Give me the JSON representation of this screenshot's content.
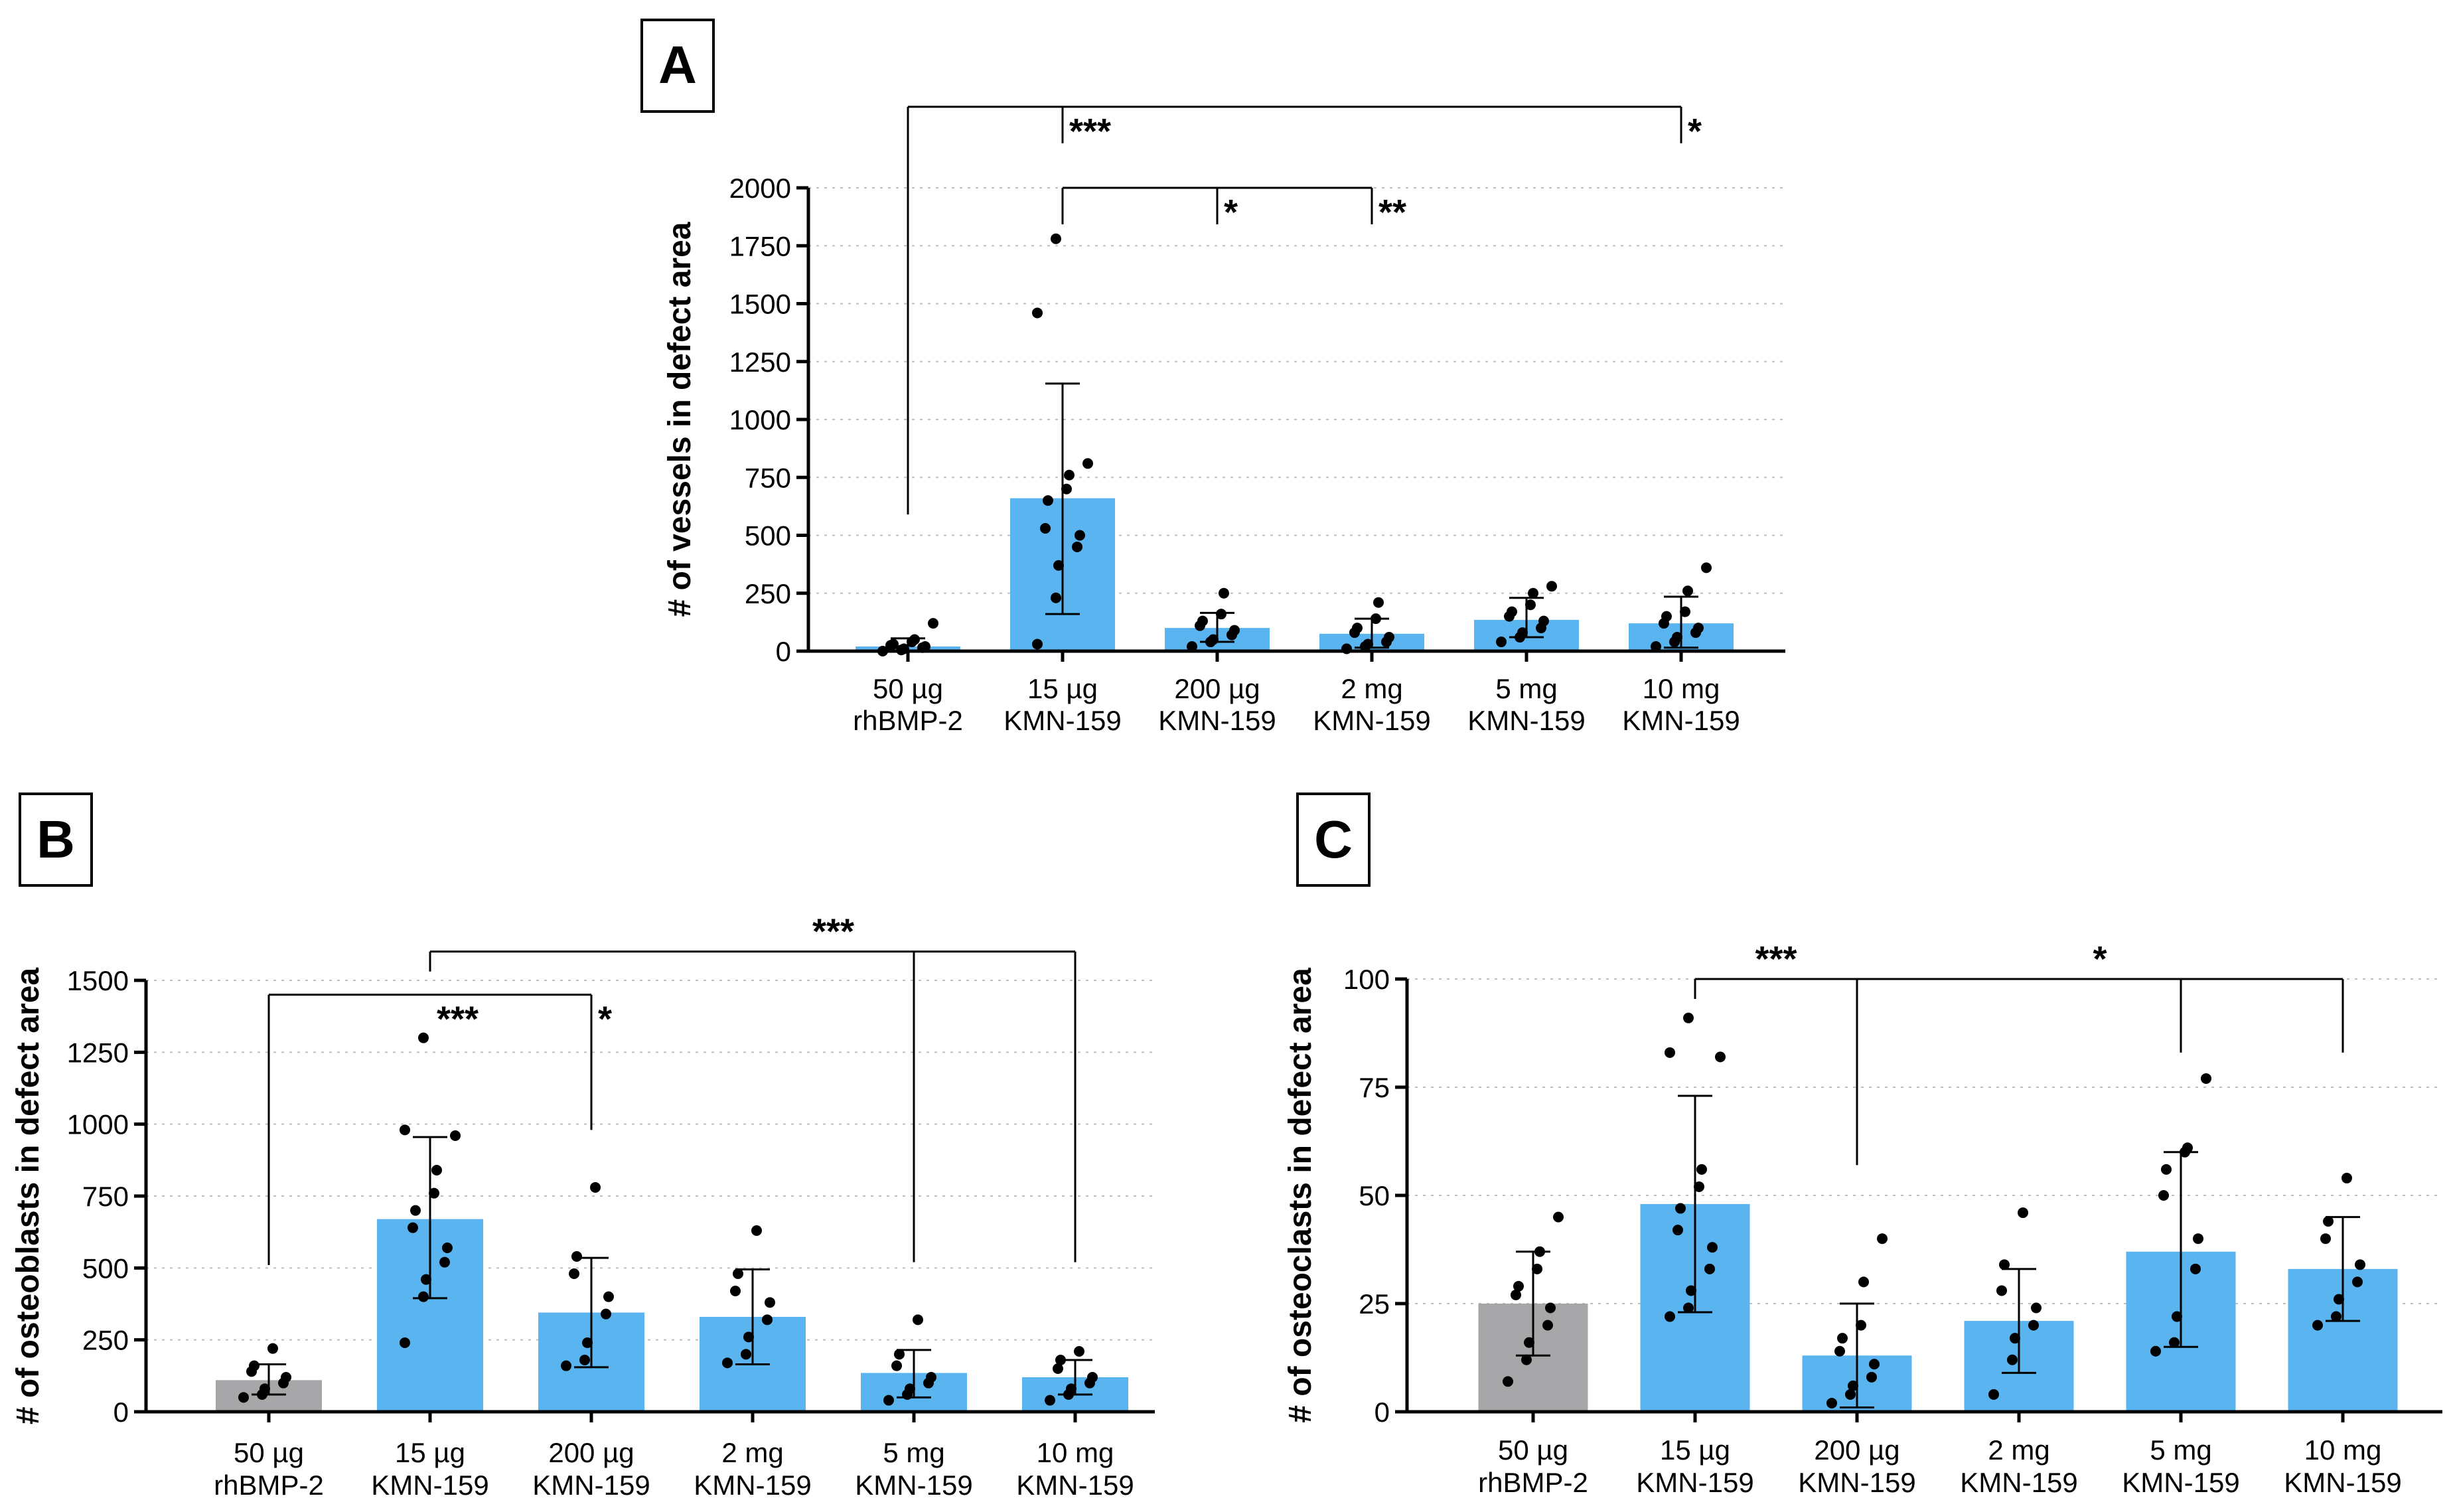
{
  "colors": {
    "bar_gray": "#a7a7a9",
    "bar_blue": "#5ab4f0",
    "point": "#000000",
    "grid": "#bfbfbf"
  },
  "chart_data": [
    {
      "panel": "A",
      "type": "bar",
      "ylabel": "# of vessels in defect area",
      "ylim": [
        0,
        2000
      ],
      "yticks": [
        0,
        250,
        500,
        750,
        1000,
        1250,
        1500,
        1750,
        2000
      ],
      "grid": true,
      "categories": [
        {
          "line1": "50 µg",
          "line2": "rhBMP-2"
        },
        {
          "line1": "15 µg",
          "line2": "KMN-159"
        },
        {
          "line1": "200 µg",
          "line2": "KMN-159"
        },
        {
          "line1": "2 mg",
          "line2": "KMN-159"
        },
        {
          "line1": "5 mg",
          "line2": "KMN-159"
        },
        {
          "line1": "10 mg",
          "line2": "KMN-159"
        }
      ],
      "bar_colors": [
        "blue",
        "blue",
        "blue",
        "blue",
        "blue",
        "blue"
      ],
      "values": [
        20,
        660,
        100,
        75,
        135,
        120
      ],
      "error_low": [
        0,
        160,
        40,
        15,
        60,
        15
      ],
      "error_high": [
        55,
        1155,
        165,
        140,
        230,
        235
      ],
      "points": [
        [
          0,
          5,
          10,
          15,
          20,
          25,
          30,
          40,
          50,
          120
        ],
        [
          30,
          230,
          370,
          450,
          500,
          530,
          650,
          700,
          760,
          810,
          1460,
          1780
        ],
        [
          20,
          40,
          50,
          70,
          90,
          110,
          130,
          160,
          250
        ],
        [
          10,
          20,
          30,
          40,
          60,
          80,
          100,
          140,
          210
        ],
        [
          40,
          60,
          80,
          100,
          130,
          150,
          170,
          200,
          250,
          280
        ],
        [
          20,
          40,
          60,
          80,
          100,
          120,
          150,
          170,
          260,
          360
        ]
      ],
      "sig_brackets": [
        {
          "from": 0,
          "to": [
            1,
            5
          ],
          "level": 2350,
          "drop_from": 590,
          "label": "***",
          "label_at": 1,
          "label2": "*",
          "label2_at": 5
        },
        {
          "from": 1,
          "to": [
            2,
            3
          ],
          "level": 2000,
          "drop_from": 2000,
          "label": "*",
          "label_at": 2,
          "label2": "**",
          "label2_at": 3
        }
      ]
    },
    {
      "panel": "B",
      "type": "bar",
      "ylabel": "# of osteoblasts in defect area",
      "ylim": [
        0,
        1500
      ],
      "yticks": [
        0,
        250,
        500,
        750,
        1000,
        1250,
        1500
      ],
      "grid": true,
      "categories": [
        {
          "line1": "50 µg",
          "line2": "rhBMP-2"
        },
        {
          "line1": "15 µg",
          "line2": "KMN-159"
        },
        {
          "line1": "200 µg",
          "line2": "KMN-159"
        },
        {
          "line1": "2 mg",
          "line2": "KMN-159"
        },
        {
          "line1": "5 mg",
          "line2": "KMN-159"
        },
        {
          "line1": "10 mg",
          "line2": "KMN-159"
        }
      ],
      "bar_colors": [
        "gray",
        "blue",
        "blue",
        "blue",
        "blue",
        "blue"
      ],
      "values": [
        110,
        670,
        345,
        330,
        135,
        120
      ],
      "error_low": [
        60,
        395,
        155,
        165,
        50,
        60
      ],
      "error_high": [
        165,
        955,
        535,
        495,
        215,
        180
      ],
      "points": [
        [
          50,
          60,
          80,
          100,
          120,
          140,
          160,
          220
        ],
        [
          240,
          400,
          460,
          520,
          570,
          640,
          700,
          760,
          840,
          960,
          980,
          1300
        ],
        [
          160,
          180,
          240,
          340,
          400,
          480,
          540,
          780
        ],
        [
          170,
          200,
          260,
          320,
          380,
          420,
          480,
          630
        ],
        [
          40,
          60,
          80,
          100,
          120,
          160,
          200,
          320
        ],
        [
          40,
          60,
          80,
          100,
          120,
          150,
          180,
          210
        ]
      ],
      "sig_brackets": [
        {
          "from": 1,
          "to": [
            4,
            5
          ],
          "level": 1600,
          "drop_from": 1600,
          "target_drop": 520,
          "label": "***",
          "label_at": 3.5
        },
        {
          "from": 0,
          "to": [
            2
          ],
          "level": 1450,
          "drop_from": 510,
          "target_drop": 980,
          "label": "***",
          "label_at": 1,
          "label2": "*",
          "label2_at": 2
        }
      ]
    },
    {
      "panel": "C",
      "type": "bar",
      "ylabel": "# of osteoclasts in defect area",
      "ylim": [
        0,
        100
      ],
      "yticks": [
        0,
        25,
        50,
        75,
        100
      ],
      "grid": true,
      "categories": [
        {
          "line1": "50 µg",
          "line2": "rhBMP-2"
        },
        {
          "line1": "15 µg",
          "line2": "KMN-159"
        },
        {
          "line1": "200 µg",
          "line2": "KMN-159"
        },
        {
          "line1": "2 mg",
          "line2": "KMN-159"
        },
        {
          "line1": "5 mg",
          "line2": "KMN-159"
        },
        {
          "line1": "10 mg",
          "line2": "KMN-159"
        }
      ],
      "bar_colors": [
        "gray",
        "blue",
        "blue",
        "blue",
        "blue",
        "blue"
      ],
      "values": [
        25,
        48,
        13,
        21,
        37,
        33
      ],
      "error_low": [
        13,
        23,
        1,
        9,
        15,
        21
      ],
      "error_high": [
        37,
        73,
        25,
        33,
        60,
        45
      ],
      "points": [
        [
          7,
          12,
          16,
          20,
          24,
          27,
          29,
          33,
          37,
          45
        ],
        [
          22,
          24,
          28,
          33,
          38,
          42,
          47,
          52,
          56,
          82,
          83,
          91
        ],
        [
          2,
          4,
          6,
          8,
          11,
          14,
          17,
          20,
          30,
          40
        ],
        [
          4,
          12,
          17,
          20,
          24,
          28,
          34,
          46
        ],
        [
          14,
          16,
          22,
          33,
          40,
          50,
          56,
          60,
          61,
          77
        ],
        [
          20,
          22,
          26,
          30,
          34,
          40,
          44,
          54
        ]
      ],
      "sig_brackets": [
        {
          "from": 1,
          "to": [
            2
          ],
          "level": 100,
          "drop_from": 100,
          "target_drop": 58,
          "label": "***",
          "label_at": 1.5
        },
        {
          "from": 2,
          "to": [
            4,
            5
          ],
          "level": 100,
          "drop_from": 57,
          "target_drop": 83,
          "label": "*",
          "label_at": 3.5
        }
      ]
    }
  ]
}
